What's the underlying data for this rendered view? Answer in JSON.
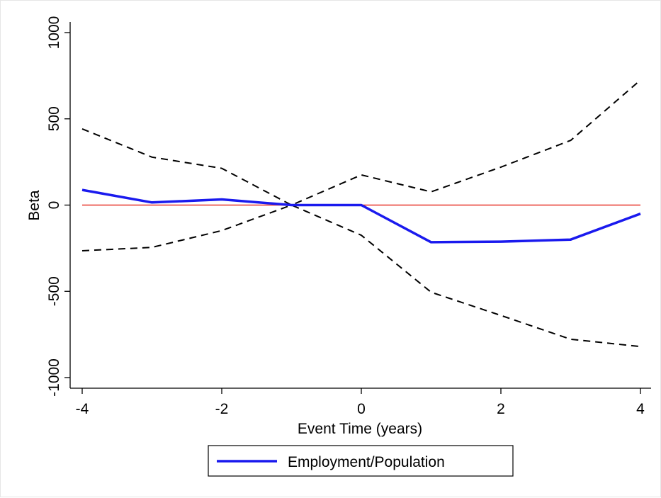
{
  "chart_data": {
    "type": "line",
    "title": "",
    "xlabel": "Event Time (years)",
    "ylabel": "Beta",
    "xlim": [
      -4,
      4
    ],
    "ylim": [
      -1000,
      1000
    ],
    "x_ticks": [
      -4,
      -2,
      0,
      2,
      4
    ],
    "x_tick_labels": [
      "-4",
      "-2",
      "0",
      "2",
      "4"
    ],
    "y_ticks": [
      -1000,
      -500,
      0,
      500,
      1000
    ],
    "y_tick_labels": [
      "-1000",
      "-500",
      "0",
      "500",
      "1000"
    ],
    "x": [
      -4,
      -3,
      -2,
      -1,
      0,
      1,
      2,
      3,
      4
    ],
    "grid": false,
    "legend_position": "bottom",
    "series": [
      {
        "name": "Employment/Population",
        "values": [
          88,
          15,
          33,
          0,
          0,
          -215,
          -212,
          -200,
          -50
        ],
        "color": "#1a1aee",
        "style": "solid",
        "in_legend": true
      },
      {
        "values": [
          442,
          278,
          213,
          0,
          175,
          77,
          220,
          375,
          725
        ],
        "color": "#000000",
        "style": "dashed",
        "in_legend": false
      },
      {
        "values": [
          -265,
          -245,
          -148,
          0,
          -175,
          -505,
          -640,
          -778,
          -820
        ],
        "color": "#000000",
        "style": "dashed",
        "in_legend": false
      }
    ],
    "reference_line": {
      "y": 0,
      "color": "#e8352a"
    }
  }
}
